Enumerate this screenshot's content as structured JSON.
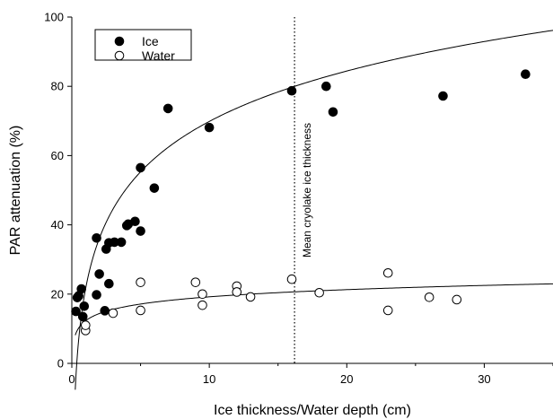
{
  "chart_data": {
    "type": "scatter",
    "title": "",
    "xlabel": "Ice thickness/Water depth (cm)",
    "ylabel": "PAR attenuation (%)",
    "xlim": [
      0,
      35
    ],
    "ylim": [
      0,
      100
    ],
    "xticks": [
      0,
      10,
      20,
      30
    ],
    "yticks": [
      0,
      20,
      40,
      60,
      80,
      100
    ],
    "grid": false,
    "legend_position": "top-left",
    "series": [
      {
        "name": "Ice",
        "marker": "filled-circle",
        "color": "#000000",
        "points": [
          [
            0.3,
            15
          ],
          [
            0.4,
            19
          ],
          [
            0.5,
            19.5
          ],
          [
            0.7,
            21.5
          ],
          [
            0.8,
            13.5
          ],
          [
            0.9,
            16.5
          ],
          [
            1.8,
            36.2
          ],
          [
            1.8,
            19.8
          ],
          [
            2.0,
            25.8
          ],
          [
            2.4,
            15.2
          ],
          [
            2.5,
            33
          ],
          [
            2.7,
            23
          ],
          [
            2.7,
            34.8
          ],
          [
            3.1,
            35
          ],
          [
            3.6,
            35
          ],
          [
            4.0,
            39.8
          ],
          [
            4.1,
            40.2
          ],
          [
            4.6,
            41
          ],
          [
            5.0,
            56.5
          ],
          [
            5.0,
            38.2
          ],
          [
            6.0,
            50.6
          ],
          [
            7.0,
            73.6
          ],
          [
            10.0,
            68.1
          ],
          [
            16.0,
            78.7
          ],
          [
            18.5,
            80
          ],
          [
            19.0,
            72.6
          ],
          [
            27.0,
            77.2
          ],
          [
            33.0,
            83.5
          ]
        ],
        "fit": {
          "form": "a + b*ln(x)",
          "a": 21.5,
          "b": 21.0
        }
      },
      {
        "name": "Water",
        "marker": "open-circle",
        "color": "#000000",
        "points": [
          [
            1.0,
            9.5
          ],
          [
            1.0,
            11.0
          ],
          [
            3.0,
            14.5
          ],
          [
            5.0,
            23.4
          ],
          [
            5.0,
            15.3
          ],
          [
            9.0,
            23.4
          ],
          [
            9.5,
            20.0
          ],
          [
            9.5,
            16.8
          ],
          [
            12.0,
            22.3
          ],
          [
            12.0,
            20.6
          ],
          [
            13.0,
            19.2
          ],
          [
            16.0,
            24.3
          ],
          [
            18.0,
            20.4
          ],
          [
            23.0,
            26.1
          ],
          [
            23.0,
            15.3
          ],
          [
            26.0,
            19.1
          ],
          [
            28.0,
            18.4
          ]
        ],
        "fit": {
          "form": "a + b*ln(x)",
          "a": 12.3,
          "b": 3.0
        }
      }
    ],
    "annotations": [
      {
        "type": "vertical-dotted-line",
        "x": 16.2,
        "label": "Mean cryolake ice thickness"
      }
    ]
  }
}
